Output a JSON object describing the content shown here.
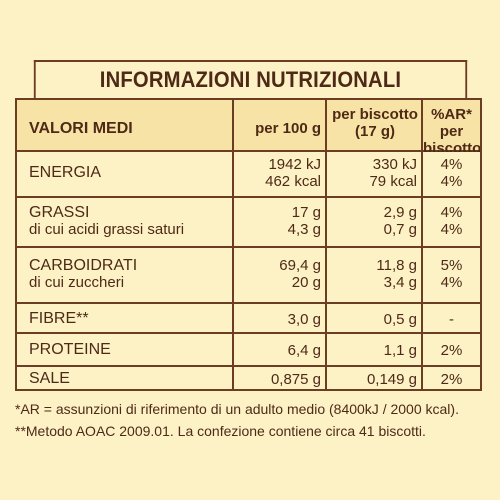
{
  "title": "INFORMAZIONI NUTRIZIONALI",
  "header": {
    "col1": "VALORI MEDI",
    "col2": "per 100 g",
    "col3_line1": "per biscotto",
    "col3_line2": "(17 g)",
    "col4_line1": "%AR*",
    "col4_line2": "per biscotto"
  },
  "rows": [
    {
      "label": "ENERGIA",
      "per100": [
        "1942 kJ",
        "462 kcal"
      ],
      "perBiscotto": [
        "330 kJ",
        "79 kcal"
      ],
      "ar": [
        "4%",
        "4%"
      ]
    },
    {
      "label": "GRASSI",
      "sublabel": "di cui acidi grassi saturi",
      "per100": [
        "17 g",
        "4,3 g"
      ],
      "perBiscotto": [
        "2,9 g",
        "0,7 g"
      ],
      "ar": [
        "4%",
        "4%"
      ]
    },
    {
      "label": "CARBOIDRATI",
      "sublabel": "di cui zuccheri",
      "per100": [
        "69,4 g",
        "20 g"
      ],
      "perBiscotto": [
        "11,8 g",
        "3,4 g"
      ],
      "ar": [
        "5%",
        "4%"
      ]
    },
    {
      "label": "FIBRE**",
      "per100": [
        "3,0 g"
      ],
      "perBiscotto": [
        "0,5 g"
      ],
      "ar": [
        "-"
      ]
    },
    {
      "label": "PROTEINE",
      "per100": [
        "6,4 g"
      ],
      "perBiscotto": [
        "1,1 g"
      ],
      "ar": [
        "2%"
      ]
    },
    {
      "label": "SALE",
      "per100": [
        "0,875 g"
      ],
      "perBiscotto": [
        "0,149 g"
      ],
      "ar": [
        "2%"
      ]
    }
  ],
  "footnotes": [
    "*AR = assunzioni di riferimento di un adulto medio (8400kJ / 2000 kcal).",
    "**Metodo AOAC 2009.01. La confezione contiene circa 41 biscotti."
  ]
}
